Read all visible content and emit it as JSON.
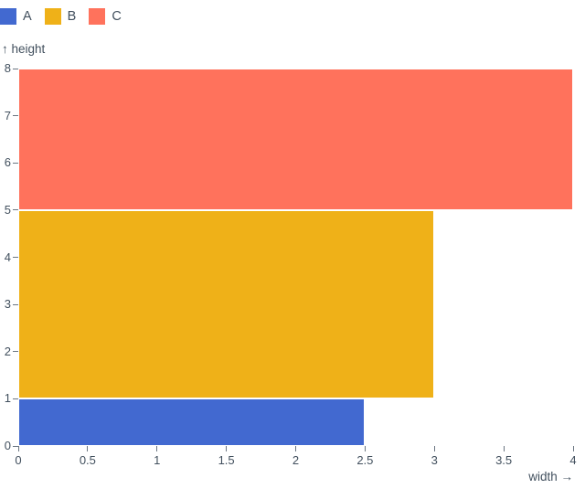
{
  "page": {
    "background_color": "#ffffff",
    "text_color": "#42505e",
    "tick_color": "#6b7682"
  },
  "legend": {
    "position": "top-left",
    "items": [
      {
        "label": "A",
        "color": "#4269d0"
      },
      {
        "label": "B",
        "color": "#efb118"
      },
      {
        "label": "C",
        "color": "#ff725c"
      }
    ]
  },
  "axes": {
    "y": {
      "label": "↑ height",
      "range": [
        0,
        8
      ],
      "ticks": [
        {
          "value": 0,
          "label": "0"
        },
        {
          "value": 1,
          "label": "1"
        },
        {
          "value": 2,
          "label": "2"
        },
        {
          "value": 3,
          "label": "3"
        },
        {
          "value": 4,
          "label": "4"
        },
        {
          "value": 5,
          "label": "5"
        },
        {
          "value": 6,
          "label": "6"
        },
        {
          "value": 7,
          "label": "7"
        },
        {
          "value": 8,
          "label": "8"
        }
      ]
    },
    "x": {
      "label": "width →",
      "range": [
        0,
        4
      ],
      "ticks": [
        {
          "value": 0,
          "label": "0"
        },
        {
          "value": 0.5,
          "label": "0.5"
        },
        {
          "value": 1,
          "label": "1"
        },
        {
          "value": 1.5,
          "label": "1.5"
        },
        {
          "value": 2,
          "label": "2"
        },
        {
          "value": 2.5,
          "label": "2.5"
        },
        {
          "value": 3,
          "label": "3"
        },
        {
          "value": 3.5,
          "label": "3.5"
        },
        {
          "value": 4,
          "label": "4"
        }
      ]
    }
  },
  "chart_data": {
    "type": "bar",
    "subtype": "horizontal variable-width stacked (Marimekko-style)",
    "title": "",
    "xlabel": "width",
    "ylabel": "height",
    "xlim": [
      0,
      4
    ],
    "ylim": [
      0,
      8
    ],
    "grid": false,
    "legend_position": "top-left",
    "series": [
      {
        "name": "A",
        "color": "#4269d0",
        "width": 2.5,
        "y0": 0,
        "y1": 1,
        "height": 1
      },
      {
        "name": "B",
        "color": "#efb118",
        "width": 3,
        "y0": 1,
        "y1": 5,
        "height": 4
      },
      {
        "name": "C",
        "color": "#ff725c",
        "width": 4,
        "y0": 5,
        "y1": 8,
        "height": 3
      }
    ]
  }
}
